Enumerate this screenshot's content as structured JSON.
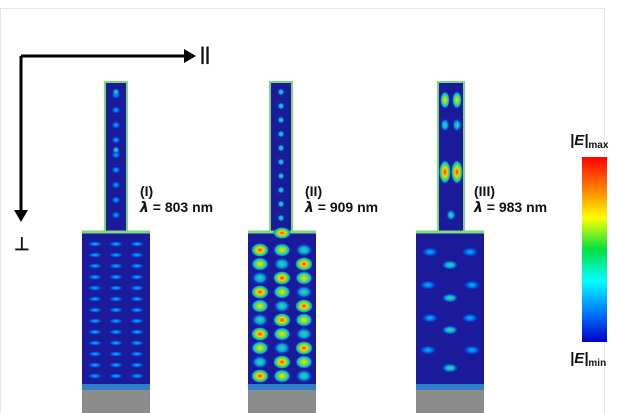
{
  "axes": {
    "parallel_symbol": "||",
    "perpendicular_symbol": "⊥"
  },
  "panels": [
    {
      "roman": "(I)",
      "lambda_symbol": "λ",
      "wavelength": "= 803 nm",
      "pattern": "weak"
    },
    {
      "roman": "(II)",
      "lambda_symbol": "λ",
      "wavelength": "= 909 nm",
      "pattern": "strong"
    },
    {
      "roman": "(III)",
      "lambda_symbol": "λ",
      "wavelength": "= 983 nm",
      "pattern": "mixed"
    }
  ],
  "colorbar": {
    "max_label": "|E|",
    "max_sub": "max",
    "min_label": "|E|",
    "min_sub": "min",
    "colors": [
      "#ff0000",
      "#ff7f00",
      "#ffff00",
      "#00e040",
      "#00ffff",
      "#0080ff",
      "#0000c8"
    ]
  },
  "colors": {
    "background_field": "#1a1a9a",
    "outline": "#7cd67c",
    "substrate_layer": "#2f7fc8",
    "substrate_base": "#8c8c8c"
  }
}
